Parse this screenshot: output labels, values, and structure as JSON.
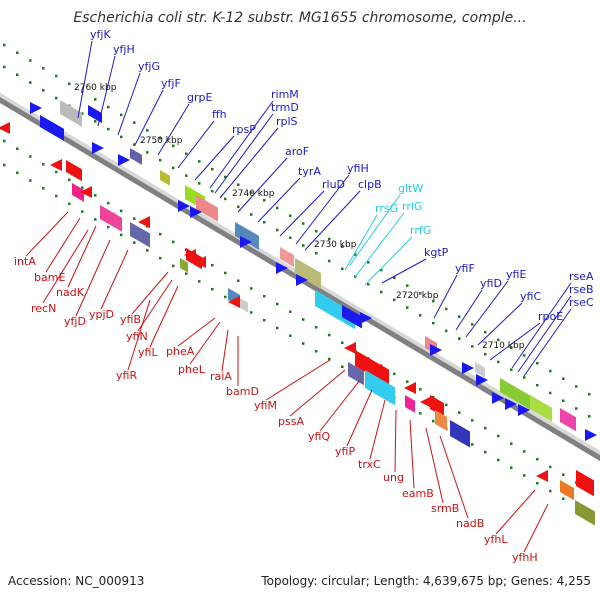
{
  "title": "Escherichia coli str. K-12 substr. MG1655 chromosome, comple...",
  "footer": {
    "accession_label": "Accession: NC_000913",
    "topology": "Topology: circular;",
    "length": "Length: 4,639,675 bp;",
    "genes": "Genes: 4,255"
  },
  "colors": {
    "forward_label": "#1a1acc",
    "reverse_label": "#cc1111",
    "rna_label": "#22ccee",
    "axis": "#808080",
    "tick": "#1a7a1a",
    "forward_arrow": "#1a1aee",
    "reverse_arrow": "#ee1111"
  },
  "scale_ticks": [
    "2760 kbp",
    "2750 kbp",
    "2740 kbp",
    "2730 kbp",
    "2720 kbp",
    "2710 kbp"
  ],
  "forward_genes": [
    "yfjK",
    "yfjH",
    "yfjG",
    "yfjF",
    "grpE",
    "ffh",
    "rpsP",
    "rimM",
    "trmD",
    "rplS",
    "aroF",
    "tyrA",
    "rluD",
    "yfiH",
    "clpB",
    "kgtP",
    "yfiF",
    "yfiD",
    "yfiE",
    "yfiC",
    "rpoE",
    "rseA",
    "rseB",
    "rseC"
  ],
  "rna_genes": [
    "gltW",
    "rrsG",
    "rrlG",
    "rrfG"
  ],
  "reverse_genes": [
    "intA",
    "bamE",
    "nadK",
    "recN",
    "yfjD",
    "ypjD",
    "yfiB",
    "yfiN",
    "yfiL",
    "yfiR",
    "pheA",
    "pheL",
    "raiA",
    "bamD",
    "yfiM",
    "pssA",
    "yfiQ",
    "yfiP",
    "trxC",
    "ung",
    "eamB",
    "srmB",
    "nadB",
    "yfhL",
    "yfhH"
  ]
}
